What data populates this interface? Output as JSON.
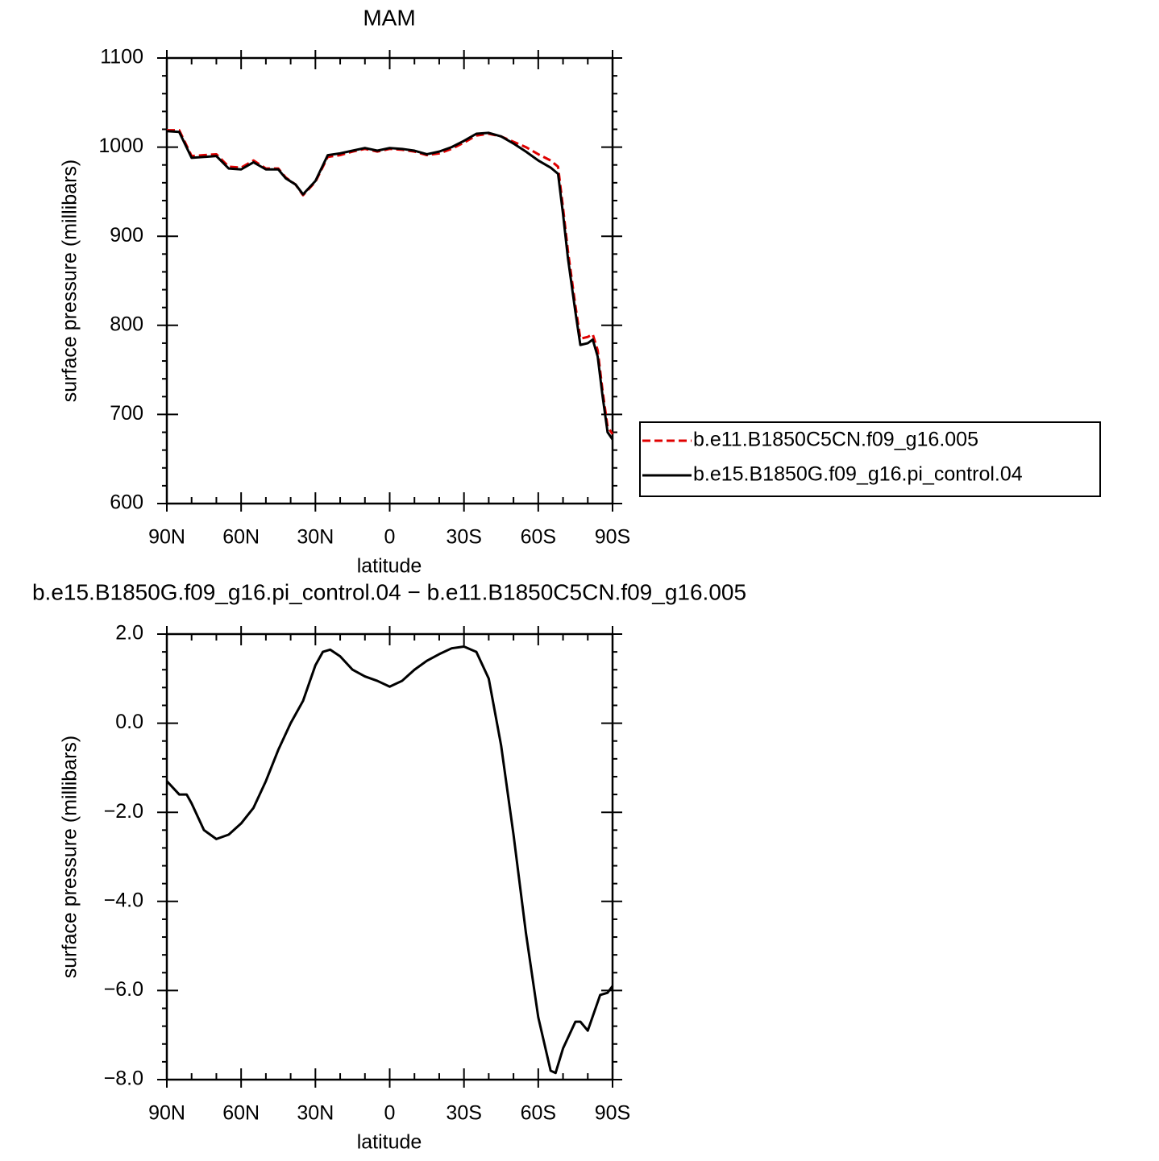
{
  "chart_data": [
    {
      "type": "line",
      "title": "MAM",
      "xlabel": "latitude",
      "ylabel": "surface pressure (millibars)",
      "x": [
        90,
        85,
        80,
        75,
        70,
        65,
        60,
        55,
        50,
        45,
        42,
        38,
        35,
        30,
        25,
        20,
        15,
        10,
        5,
        0,
        -5,
        -10,
        -15,
        -20,
        -25,
        -30,
        -35,
        -40,
        -45,
        -50,
        -55,
        -60,
        -65,
        -68,
        -70,
        -72,
        -75,
        -77,
        -80,
        -82,
        -84,
        -86,
        -88,
        -90
      ],
      "series": [
        {
          "name": "b.e11.B1850C5CN.f09_g16.005",
          "color": "#e00000",
          "dashed": true,
          "values": [
            1019,
            1019,
            990,
            991,
            992,
            978,
            977,
            985,
            976,
            976,
            966,
            958,
            946,
            961,
            989,
            991,
            995,
            998,
            995,
            998,
            997,
            995,
            991,
            993,
            998,
            1005,
            1013,
            1015,
            1012,
            1006,
            1000,
            992,
            985,
            978,
            932,
            883,
            822,
            785,
            787,
            790,
            772,
            726,
            686,
            678
          ]
        },
        {
          "name": "b.e15.B1850G.f09_g16.pi_control.04",
          "color": "#000000",
          "dashed": false,
          "values": [
            1018,
            1017,
            988,
            989,
            990,
            976,
            975,
            983,
            975,
            975,
            965,
            958,
            947,
            962,
            991,
            993,
            996,
            999,
            996,
            999,
            998,
            996,
            992,
            995,
            1000,
            1007,
            1015,
            1016,
            1012,
            1004,
            995,
            985,
            977,
            970,
            925,
            875,
            815,
            778,
            780,
            784,
            765,
            720,
            680,
            672
          ]
        }
      ],
      "xlim": [
        90,
        -90
      ],
      "xticks": [
        {
          "value": 90,
          "label": "90N"
        },
        {
          "value": 60,
          "label": "60N"
        },
        {
          "value": 30,
          "label": "30N"
        },
        0,
        {
          "value": -30,
          "label": "30S"
        },
        {
          "value": -60,
          "label": "60S"
        },
        {
          "value": -90,
          "label": "90S"
        }
      ],
      "ylim": [
        600,
        1100
      ],
      "yticks": [
        600,
        700,
        800,
        900,
        1000,
        1100
      ],
      "legend": "right"
    },
    {
      "type": "line",
      "title": "b.e15.B1850G.f09_g16.pi_control.04 − b.e11.B1850C5CN.f09_g16.005",
      "xlabel": "latitude",
      "ylabel": "surface pressure (millibars)",
      "x": [
        90,
        85,
        82,
        80,
        75,
        70,
        65,
        60,
        55,
        50,
        45,
        40,
        35,
        30,
        27,
        24,
        20,
        15,
        10,
        5,
        0,
        -5,
        -10,
        -15,
        -20,
        -25,
        -30,
        -35,
        -40,
        -45,
        -50,
        -55,
        -60,
        -65,
        -67,
        -70,
        -75,
        -77,
        -80,
        -85,
        -88,
        -90
      ],
      "series": [
        {
          "color": "#000000",
          "dashed": false,
          "values": [
            -1.3,
            -1.6,
            -1.6,
            -1.8,
            -2.4,
            -2.6,
            -2.5,
            -2.25,
            -1.9,
            -1.3,
            -0.6,
            0.0,
            0.5,
            1.3,
            1.6,
            1.65,
            1.5,
            1.2,
            1.05,
            0.95,
            0.82,
            0.95,
            1.2,
            1.4,
            1.55,
            1.68,
            1.72,
            1.6,
            1.0,
            -0.5,
            -2.5,
            -4.7,
            -6.6,
            -7.8,
            -7.85,
            -7.3,
            -6.7,
            -6.7,
            -6.9,
            -6.1,
            -6.05,
            -5.9
          ]
        }
      ],
      "xlim": [
        90,
        -90
      ],
      "xticks": [
        {
          "value": 90,
          "label": "90N"
        },
        {
          "value": 60,
          "label": "60N"
        },
        {
          "value": 30,
          "label": "30N"
        },
        0,
        {
          "value": -30,
          "label": "30S"
        },
        {
          "value": -60,
          "label": "60S"
        },
        {
          "value": -90,
          "label": "90S"
        }
      ],
      "ylim": [
        -8,
        2
      ],
      "yticks": [
        {
          "value": -8,
          "label": "−8.0"
        },
        {
          "value": -6,
          "label": "−6.0"
        },
        {
          "value": -4,
          "label": "−4.0"
        },
        {
          "value": -2,
          "label": "−2.0"
        },
        {
          "value": 0,
          "label": "0.0"
        },
        {
          "value": 2,
          "label": "2.0"
        }
      ]
    }
  ]
}
